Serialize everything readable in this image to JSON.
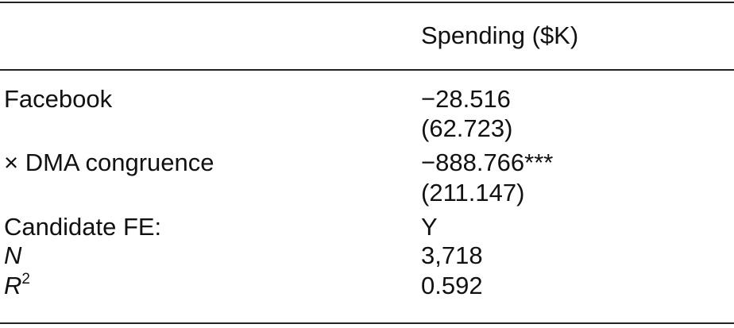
{
  "table": {
    "header": {
      "column": "Spending ($K)"
    },
    "rows": [
      {
        "label": "Facebook",
        "value": "−28.516",
        "se": "(62.723)"
      },
      {
        "label": "× DMA congruence",
        "value": "−888.766***",
        "se": "(211.147)"
      },
      {
        "label": "Candidate FE:",
        "value": "Y"
      },
      {
        "label": "N",
        "value": "3,718"
      },
      {
        "label": "R",
        "superscript": "2",
        "value": "0.592"
      }
    ]
  }
}
